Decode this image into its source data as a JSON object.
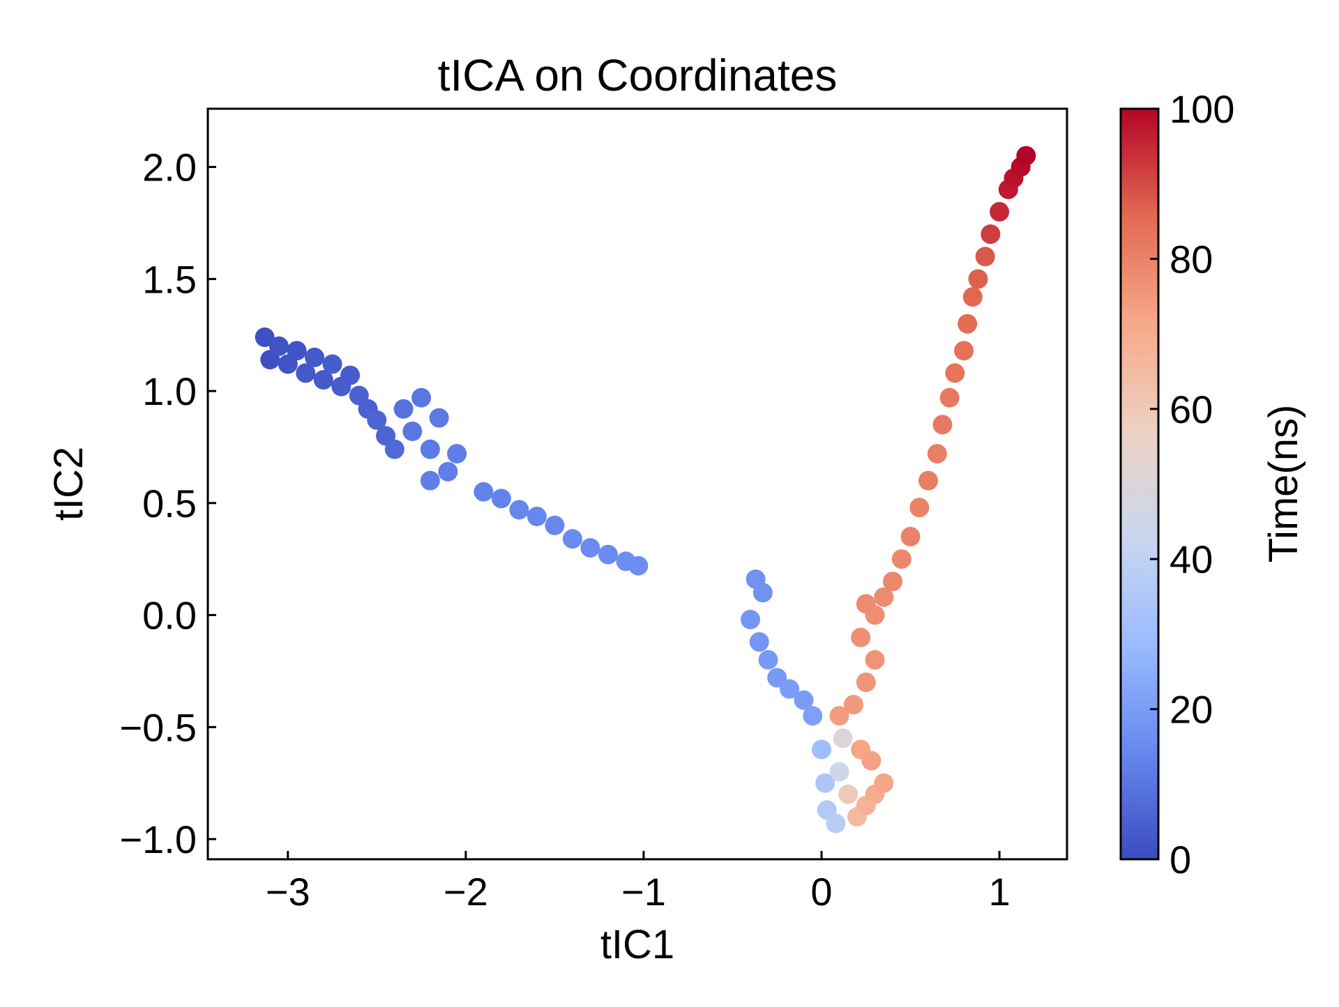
{
  "chart_data": {
    "type": "scatter",
    "title": "tICA on Coordinates",
    "xlabel": "tIC1",
    "ylabel": "tIC2",
    "xlim": [
      -3.45,
      1.38
    ],
    "ylim": [
      -1.09,
      2.26
    ],
    "xticks": [
      -3,
      -2,
      -1,
      0,
      1
    ],
    "xtick_labels": [
      "−3",
      "−2",
      "−1",
      "0",
      "1"
    ],
    "yticks": [
      -1.0,
      -0.5,
      0.0,
      0.5,
      1.0,
      1.5,
      2.0
    ],
    "ytick_labels": [
      "−1.0",
      "−0.5",
      "0.0",
      "0.5",
      "1.0",
      "1.5",
      "2.0"
    ],
    "grid": false,
    "colorbar": {
      "label": "Time(ns)",
      "range": [
        0,
        100
      ],
      "ticks": [
        0,
        20,
        40,
        60,
        80,
        100
      ],
      "tick_labels": [
        "0",
        "20",
        "40",
        "60",
        "80",
        "100"
      ],
      "colormap": "coolwarm",
      "colormap_stops": [
        "#3b4cc0",
        "#6788ee",
        "#9abbff",
        "#c9d7f0",
        "#edd1c2",
        "#f7a889",
        "#e26952",
        "#b40426"
      ]
    },
    "points": [
      {
        "x": -3.13,
        "y": 1.24,
        "t": 1
      },
      {
        "x": -3.1,
        "y": 1.14,
        "t": 1
      },
      {
        "x": -3.05,
        "y": 1.2,
        "t": 2
      },
      {
        "x": -3.0,
        "y": 1.12,
        "t": 2
      },
      {
        "x": -2.95,
        "y": 1.18,
        "t": 2
      },
      {
        "x": -2.9,
        "y": 1.08,
        "t": 3
      },
      {
        "x": -2.85,
        "y": 1.15,
        "t": 3
      },
      {
        "x": -2.8,
        "y": 1.05,
        "t": 3
      },
      {
        "x": -2.75,
        "y": 1.12,
        "t": 4
      },
      {
        "x": -2.7,
        "y": 1.02,
        "t": 4
      },
      {
        "x": -2.65,
        "y": 1.07,
        "t": 4
      },
      {
        "x": -2.6,
        "y": 0.98,
        "t": 5
      },
      {
        "x": -2.55,
        "y": 0.92,
        "t": 5
      },
      {
        "x": -2.5,
        "y": 0.87,
        "t": 6
      },
      {
        "x": -2.45,
        "y": 0.8,
        "t": 6
      },
      {
        "x": -2.4,
        "y": 0.74,
        "t": 7
      },
      {
        "x": -2.35,
        "y": 0.92,
        "t": 9
      },
      {
        "x": -2.3,
        "y": 0.82,
        "t": 10
      },
      {
        "x": -2.25,
        "y": 0.97,
        "t": 10
      },
      {
        "x": -2.2,
        "y": 0.74,
        "t": 11
      },
      {
        "x": -2.15,
        "y": 0.88,
        "t": 11
      },
      {
        "x": -2.1,
        "y": 0.64,
        "t": 12
      },
      {
        "x": -2.05,
        "y": 0.72,
        "t": 12
      },
      {
        "x": -2.2,
        "y": 0.6,
        "t": 12
      },
      {
        "x": -1.9,
        "y": 0.55,
        "t": 13
      },
      {
        "x": -1.8,
        "y": 0.52,
        "t": 13
      },
      {
        "x": -1.7,
        "y": 0.47,
        "t": 14
      },
      {
        "x": -1.6,
        "y": 0.44,
        "t": 14
      },
      {
        "x": -1.5,
        "y": 0.4,
        "t": 14
      },
      {
        "x": -1.4,
        "y": 0.34,
        "t": 15
      },
      {
        "x": -1.3,
        "y": 0.3,
        "t": 15
      },
      {
        "x": -1.2,
        "y": 0.27,
        "t": 15
      },
      {
        "x": -1.1,
        "y": 0.24,
        "t": 16
      },
      {
        "x": -1.03,
        "y": 0.22,
        "t": 16
      },
      {
        "x": -0.37,
        "y": 0.16,
        "t": 17
      },
      {
        "x": -0.33,
        "y": 0.1,
        "t": 17
      },
      {
        "x": -0.4,
        "y": -0.02,
        "t": 18
      },
      {
        "x": -0.35,
        "y": -0.12,
        "t": 18
      },
      {
        "x": -0.3,
        "y": -0.2,
        "t": 19
      },
      {
        "x": -0.25,
        "y": -0.28,
        "t": 19
      },
      {
        "x": -0.18,
        "y": -0.33,
        "t": 20
      },
      {
        "x": -0.1,
        "y": -0.38,
        "t": 20
      },
      {
        "x": -0.05,
        "y": -0.45,
        "t": 21
      },
      {
        "x": 0.0,
        "y": -0.6,
        "t": 30
      },
      {
        "x": 0.02,
        "y": -0.75,
        "t": 34
      },
      {
        "x": 0.03,
        "y": -0.87,
        "t": 36
      },
      {
        "x": 0.08,
        "y": -0.93,
        "t": 38
      },
      {
        "x": 0.1,
        "y": -0.7,
        "t": 45
      },
      {
        "x": 0.12,
        "y": -0.55,
        "t": 50
      },
      {
        "x": 0.15,
        "y": -0.8,
        "t": 60
      },
      {
        "x": 0.2,
        "y": -0.9,
        "t": 65
      },
      {
        "x": 0.25,
        "y": -0.85,
        "t": 68
      },
      {
        "x": 0.3,
        "y": -0.8,
        "t": 70
      },
      {
        "x": 0.35,
        "y": -0.75,
        "t": 72
      },
      {
        "x": 0.22,
        "y": -0.6,
        "t": 72
      },
      {
        "x": 0.28,
        "y": -0.65,
        "t": 73
      },
      {
        "x": 0.1,
        "y": -0.45,
        "t": 74
      },
      {
        "x": 0.18,
        "y": -0.4,
        "t": 75
      },
      {
        "x": 0.25,
        "y": -0.3,
        "t": 76
      },
      {
        "x": 0.3,
        "y": -0.2,
        "t": 76
      },
      {
        "x": 0.22,
        "y": -0.1,
        "t": 77
      },
      {
        "x": 0.3,
        "y": 0.0,
        "t": 77
      },
      {
        "x": 0.35,
        "y": 0.08,
        "t": 78
      },
      {
        "x": 0.25,
        "y": 0.05,
        "t": 78
      },
      {
        "x": 0.4,
        "y": 0.15,
        "t": 79
      },
      {
        "x": 0.45,
        "y": 0.25,
        "t": 79
      },
      {
        "x": 0.5,
        "y": 0.35,
        "t": 80
      },
      {
        "x": 0.55,
        "y": 0.48,
        "t": 80
      },
      {
        "x": 0.6,
        "y": 0.6,
        "t": 81
      },
      {
        "x": 0.65,
        "y": 0.72,
        "t": 81
      },
      {
        "x": 0.68,
        "y": 0.85,
        "t": 82
      },
      {
        "x": 0.72,
        "y": 0.97,
        "t": 82
      },
      {
        "x": 0.75,
        "y": 1.08,
        "t": 83
      },
      {
        "x": 0.8,
        "y": 1.18,
        "t": 84
      },
      {
        "x": 0.82,
        "y": 1.3,
        "t": 85
      },
      {
        "x": 0.85,
        "y": 1.42,
        "t": 86
      },
      {
        "x": 0.88,
        "y": 1.5,
        "t": 87
      },
      {
        "x": 0.92,
        "y": 1.6,
        "t": 88
      },
      {
        "x": 0.95,
        "y": 1.7,
        "t": 92
      },
      {
        "x": 1.0,
        "y": 1.8,
        "t": 95
      },
      {
        "x": 1.05,
        "y": 1.9,
        "t": 97
      },
      {
        "x": 1.08,
        "y": 1.95,
        "t": 98
      },
      {
        "x": 1.12,
        "y": 2.0,
        "t": 99
      },
      {
        "x": 1.15,
        "y": 2.05,
        "t": 100
      }
    ]
  }
}
